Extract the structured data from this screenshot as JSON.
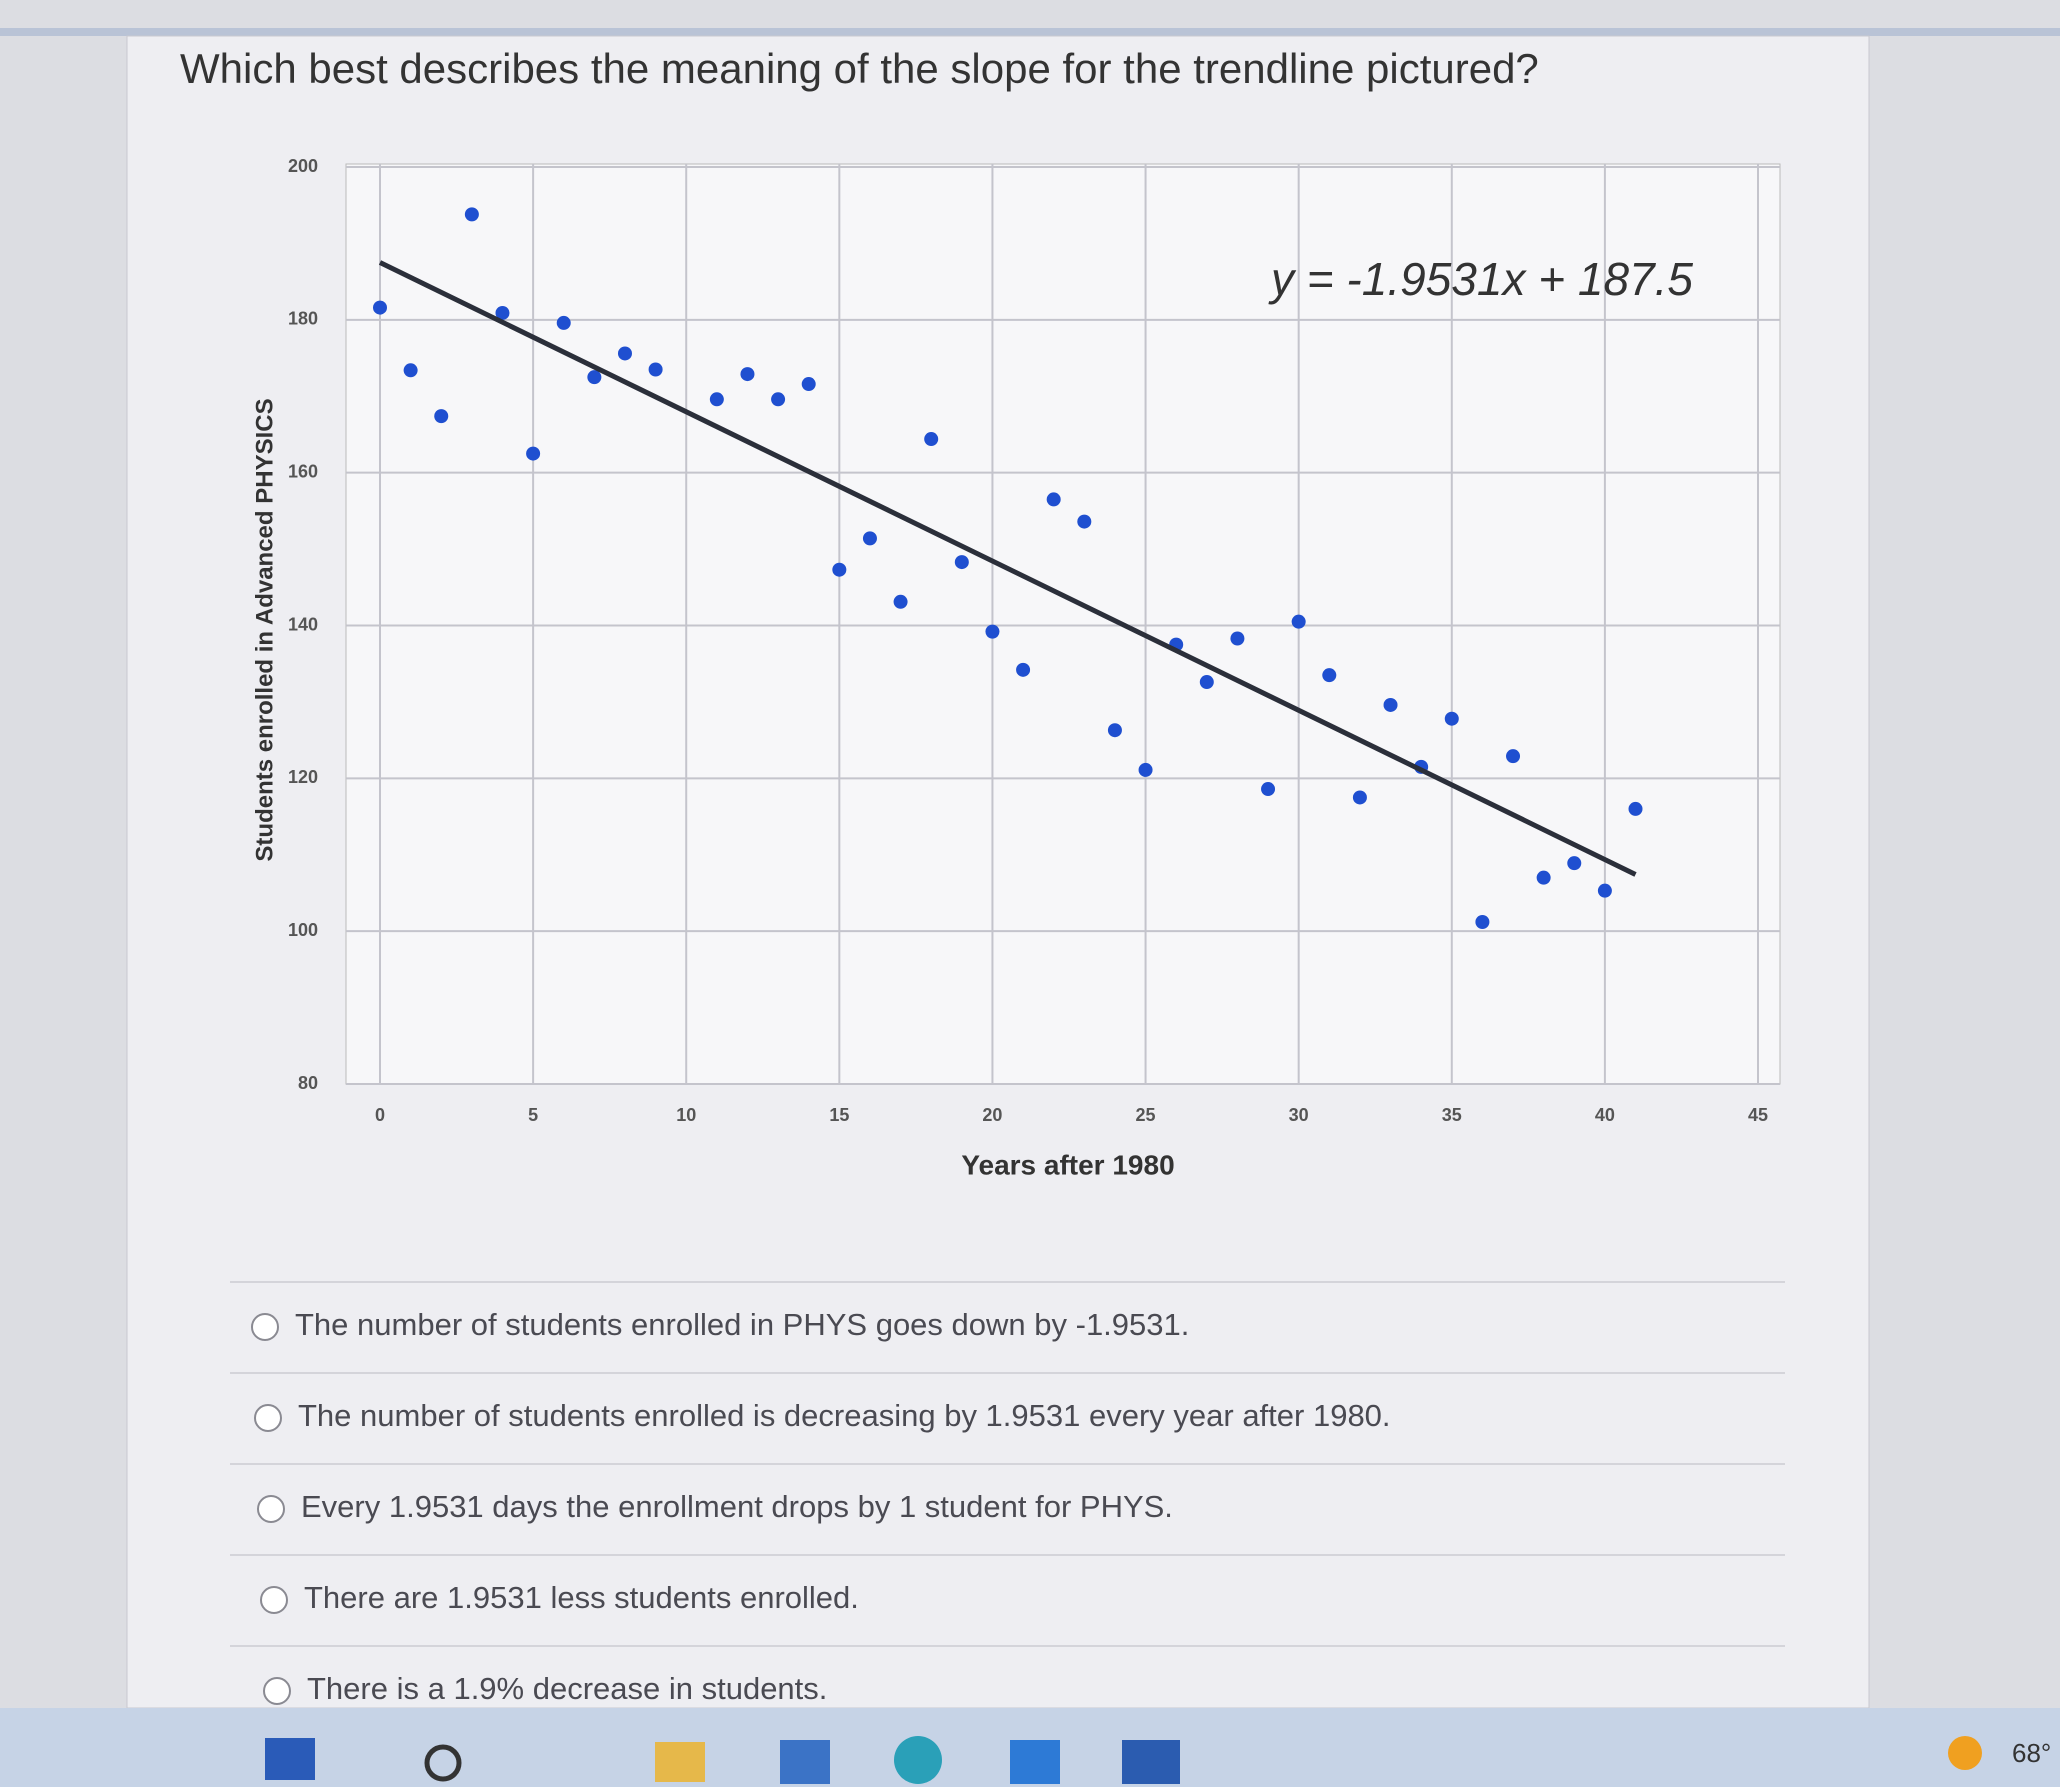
{
  "question": "Which best describes the meaning of the slope for the trendline pictured?",
  "chart_data": {
    "type": "scatter",
    "x_label": "Years after 1980",
    "y_label": "Students enrolled in Advanced PHYSICS",
    "x": [
      0,
      1,
      2,
      3,
      4,
      5,
      6,
      7,
      8,
      9,
      11,
      12,
      13,
      14,
      15,
      16,
      17,
      18,
      19,
      20,
      21,
      22,
      23,
      24,
      25,
      26,
      27,
      28,
      29,
      30,
      31,
      32,
      33,
      34,
      35,
      36,
      37,
      38,
      39,
      40,
      41
    ],
    "values": [
      181.6,
      173.4,
      167.4,
      193.8,
      180.9,
      162.5,
      179.6,
      172.5,
      175.6,
      173.5,
      169.6,
      172.9,
      169.6,
      171.6,
      147.3,
      151.4,
      143.1,
      164.4,
      148.3,
      139.2,
      134.2,
      156.5,
      153.6,
      126.3,
      121.1,
      137.5,
      132.6,
      138.3,
      118.6,
      140.5,
      133.5,
      117.5,
      129.6,
      121.5,
      127.8,
      101.2,
      122.9,
      107.0,
      108.9,
      105.3,
      116.0
    ],
    "color": "#1f4fd0",
    "trendline": {
      "slope": -1.9531,
      "intercept": 187.5,
      "label": "y = -1.9531x + 187.5",
      "color": "#2b2f3a"
    },
    "xlim": [
      0,
      45
    ],
    "ylim": [
      80,
      200
    ],
    "xticks": [
      0,
      5,
      10,
      15,
      20,
      25,
      30,
      35,
      40,
      45
    ],
    "yticks": [
      80,
      100,
      120,
      140,
      160,
      180,
      200
    ],
    "grid": true
  },
  "options": [
    "The number of students enrolled in PHYS goes down by -1.9531.",
    "The number of students enrolled is decreasing by 1.9531 every year after 1980.",
    "Every 1.9531 days the enrollment drops by 1 student for PHYS.",
    "There are 1.9531 less students enrolled.",
    "There is a 1.9% decrease in students."
  ],
  "taskbar": {
    "weather": "68°"
  }
}
